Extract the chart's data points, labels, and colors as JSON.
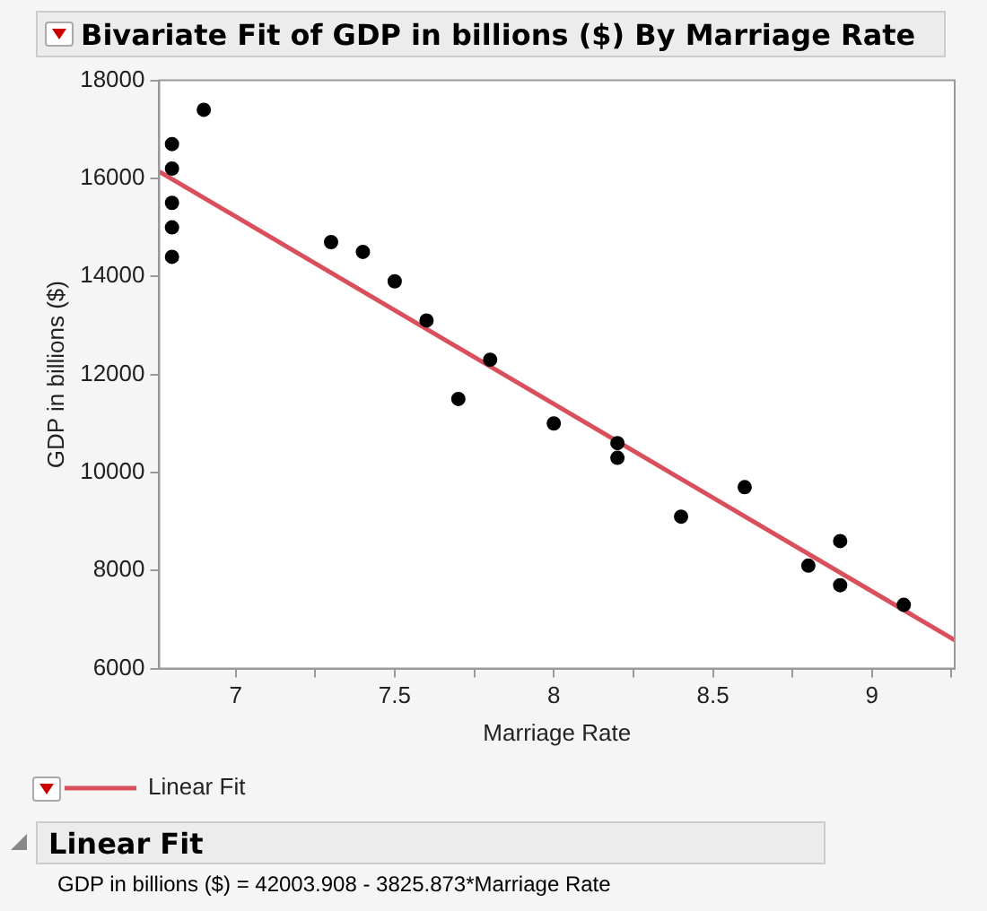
{
  "chart_data": {
    "type": "scatter",
    "title": "Bivariate Fit of GDP in billions ($) By Marriage Rate",
    "xlabel": "Marriage Rate",
    "ylabel": "GDP in billions ($)",
    "annotations": [
      "Linear Fit",
      "GDP in billions ($) = 42003.908 - 3825.873*Marriage Rate"
    ],
    "series": [
      {
        "marker": "circle",
        "color": "#000000",
        "x": [
          6.8,
          6.8,
          6.8,
          6.8,
          6.8,
          6.9,
          7.3,
          7.4,
          7.5,
          7.6,
          7.8,
          7.7,
          8.0,
          8.2,
          8.2,
          8.4,
          8.6,
          8.8,
          8.9,
          8.9,
          9.1
        ],
        "values": [
          16700,
          16200,
          15500,
          15000,
          14400,
          17400,
          14700,
          14500,
          13900,
          13100,
          12300,
          11500,
          11000,
          10600,
          10300,
          9100,
          9700,
          8100,
          8600,
          7700,
          7300
        ]
      },
      {
        "type": "line",
        "marker": "none",
        "name": "Linear Fit",
        "color": "#d94f5c",
        "x": [
          6.76,
          9.26
        ],
        "values": [
          16140,
          6580
        ]
      }
    ],
    "xlim": [
      6.76,
      9.26
    ],
    "ylim": [
      6000,
      18000
    ],
    "xticks": [
      7,
      {
        "value": 7.25,
        "label": null
      },
      7.5,
      {
        "value": 7.75,
        "label": null
      },
      8,
      {
        "value": 8.25,
        "label": null
      },
      8.5,
      {
        "value": 8.75,
        "label": null
      },
      9,
      {
        "value": 9.25,
        "label": null
      }
    ],
    "yticks": [
      6000,
      8000,
      10000,
      12000,
      14000,
      16000,
      18000
    ],
    "grid": false,
    "legend": "bottom left",
    "line_style": "solid"
  }
}
